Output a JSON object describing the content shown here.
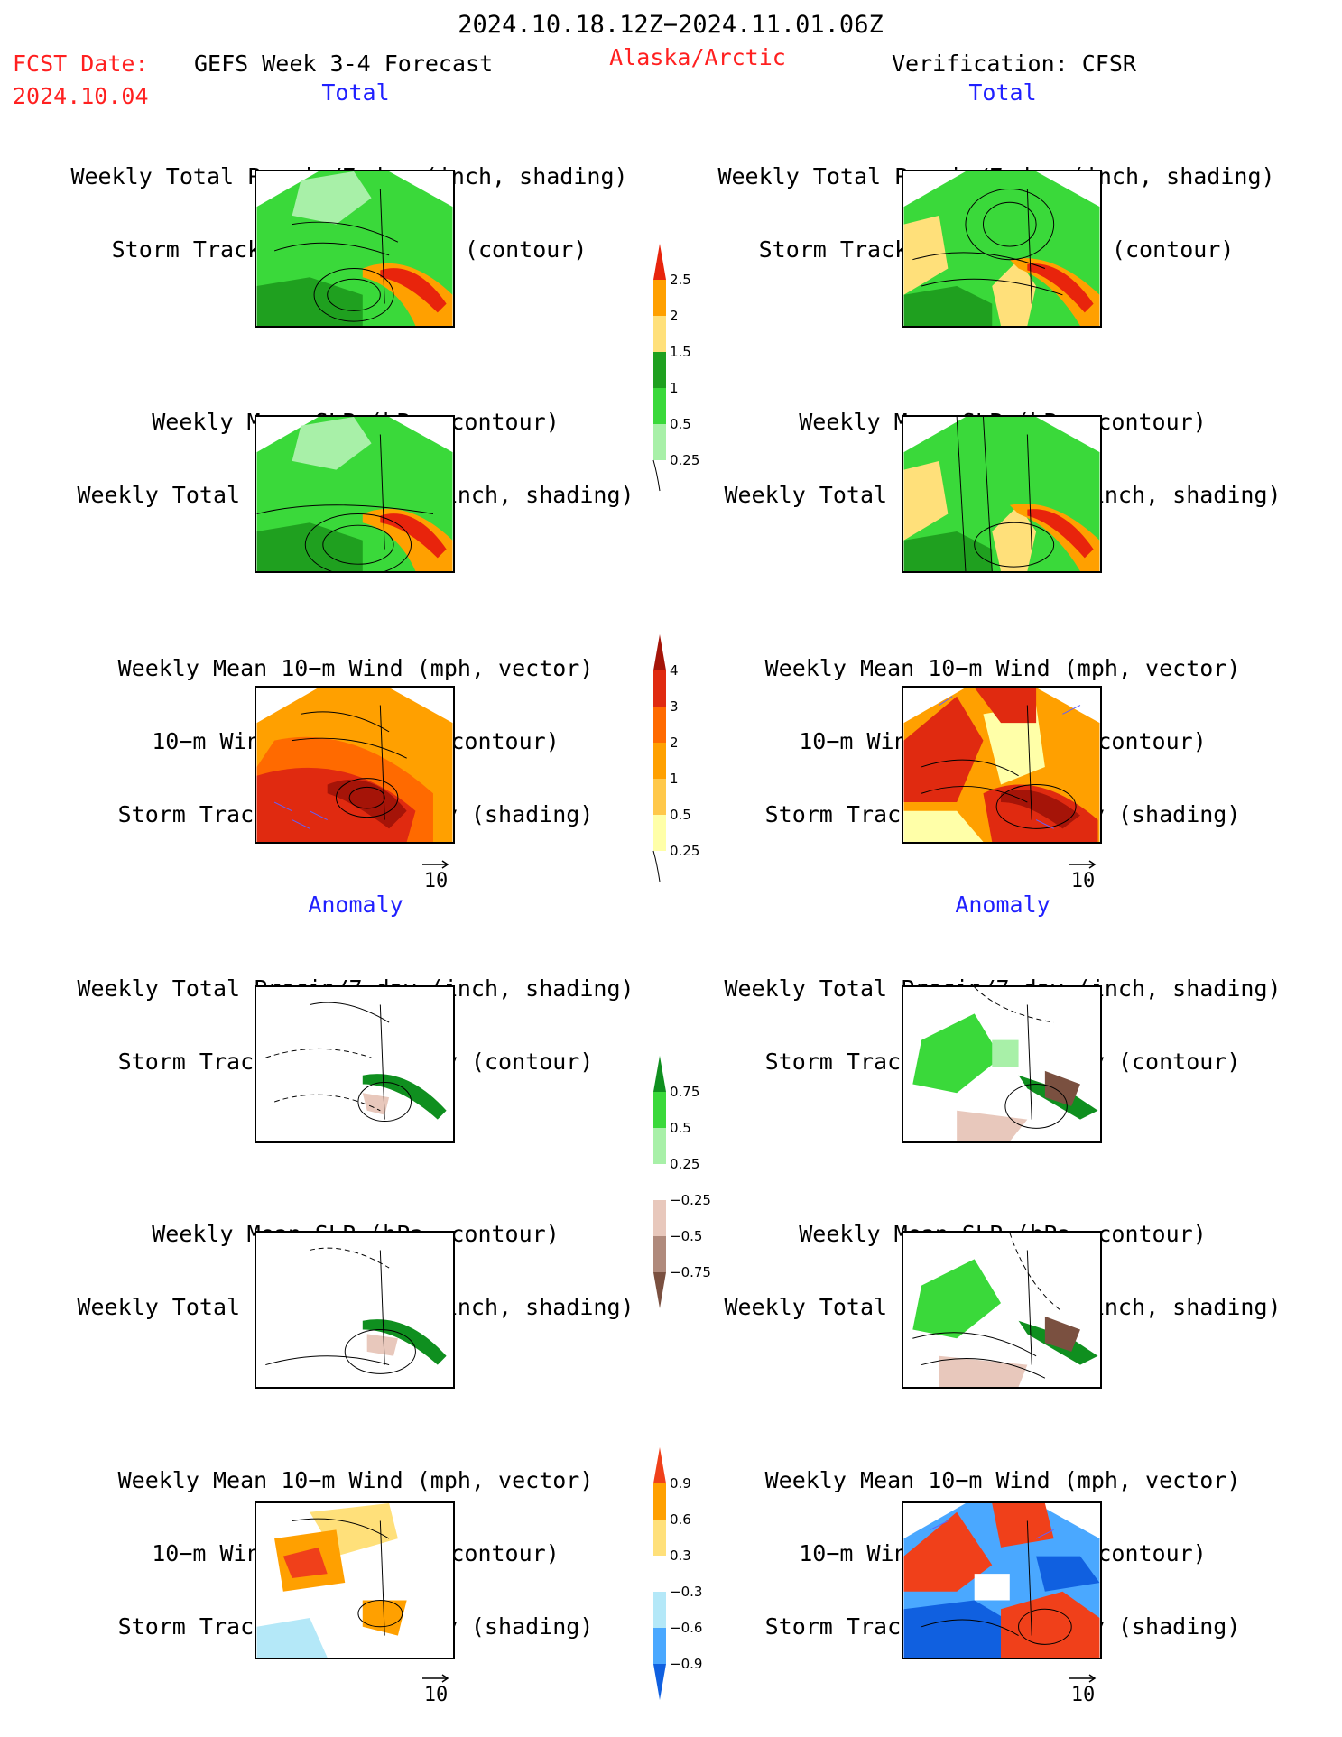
{
  "header": {
    "period": "2024.10.18.12Z−2024.11.01.06Z",
    "fcst_label": "FCST Date:",
    "fcst_date": "2024.10.04",
    "forecast_name": "GEFS Week 3-4 Forecast",
    "region": "Alaska/Arctic",
    "verification": "Verification: CFSR"
  },
  "sections": {
    "total": "Total",
    "anomaly": "Anomaly"
  },
  "titles": {
    "precip_track": [
      "Weekly Total Precip/7-day (inch, shading)",
      "Storm Track Density/7-day (contour)"
    ],
    "slp_precip": [
      "Weekly Mean SLP (hPa, contour)",
      "Weekly Total Precip/7-day (inch, shading)"
    ],
    "wind_track": [
      "Weekly Mean 10−m Wind (mph, vector)",
      "10−m Wind Speed (mph, contour)",
      "Storm Track Density/7-day (shading)"
    ]
  },
  "vector_ref": "10",
  "colorbars": [
    {
      "id": "precip_total",
      "labels": [
        "2.5",
        "2",
        "1.5",
        "1",
        "0.5",
        "0.25"
      ],
      "colors": [
        "#e8240c",
        "#ffa000",
        "#ffe07a",
        "#1fa01f",
        "#3ad93a",
        "#a8f0a8"
      ]
    },
    {
      "id": "track_total",
      "labels": [
        "4",
        "3",
        "2",
        "1",
        "0.5",
        "0.25"
      ],
      "colors": [
        "#a51408",
        "#e02a10",
        "#ff6a00",
        "#ffa000",
        "#ffc84a",
        "#ffffa8"
      ]
    },
    {
      "id": "precip_anom",
      "labels": [
        "0.75",
        "0.5",
        "0.25",
        "−0.25",
        "−0.5",
        "−0.75"
      ],
      "colors": [
        "#0f8f1f",
        "#3ad93a",
        "#a8f0a8",
        "#ffffff",
        "#e8c8bc",
        "#b08a7c",
        "#7a5040"
      ]
    },
    {
      "id": "track_anom",
      "labels": [
        "0.9",
        "0.6",
        "0.3",
        "−0.3",
        "−0.6",
        "−0.9"
      ],
      "colors": [
        "#f0401a",
        "#ffa000",
        "#ffe07a",
        "#ffffff",
        "#b4e8f8",
        "#4aa8ff",
        "#1060e0"
      ]
    }
  ],
  "map_icons": {
    "precip_total_gefs": "precip-total-map-icon",
    "precip_total_cfsr": "precip-total-map-icon",
    "slp_total_gefs": "slp-total-map-icon",
    "slp_total_cfsr": "slp-total-map-icon",
    "wind_total_gefs": "wind-total-map-icon",
    "wind_total_cfsr": "wind-total-map-icon",
    "precip_anom_gefs": "precip-anom-map-icon",
    "precip_anom_cfsr": "precip-anom-map-icon",
    "slp_anom_gefs": "slp-anom-map-icon",
    "slp_anom_cfsr": "slp-anom-map-icon",
    "wind_anom_gefs": "wind-anom-map-icon",
    "wind_anom_cfsr": "wind-anom-map-icon"
  }
}
